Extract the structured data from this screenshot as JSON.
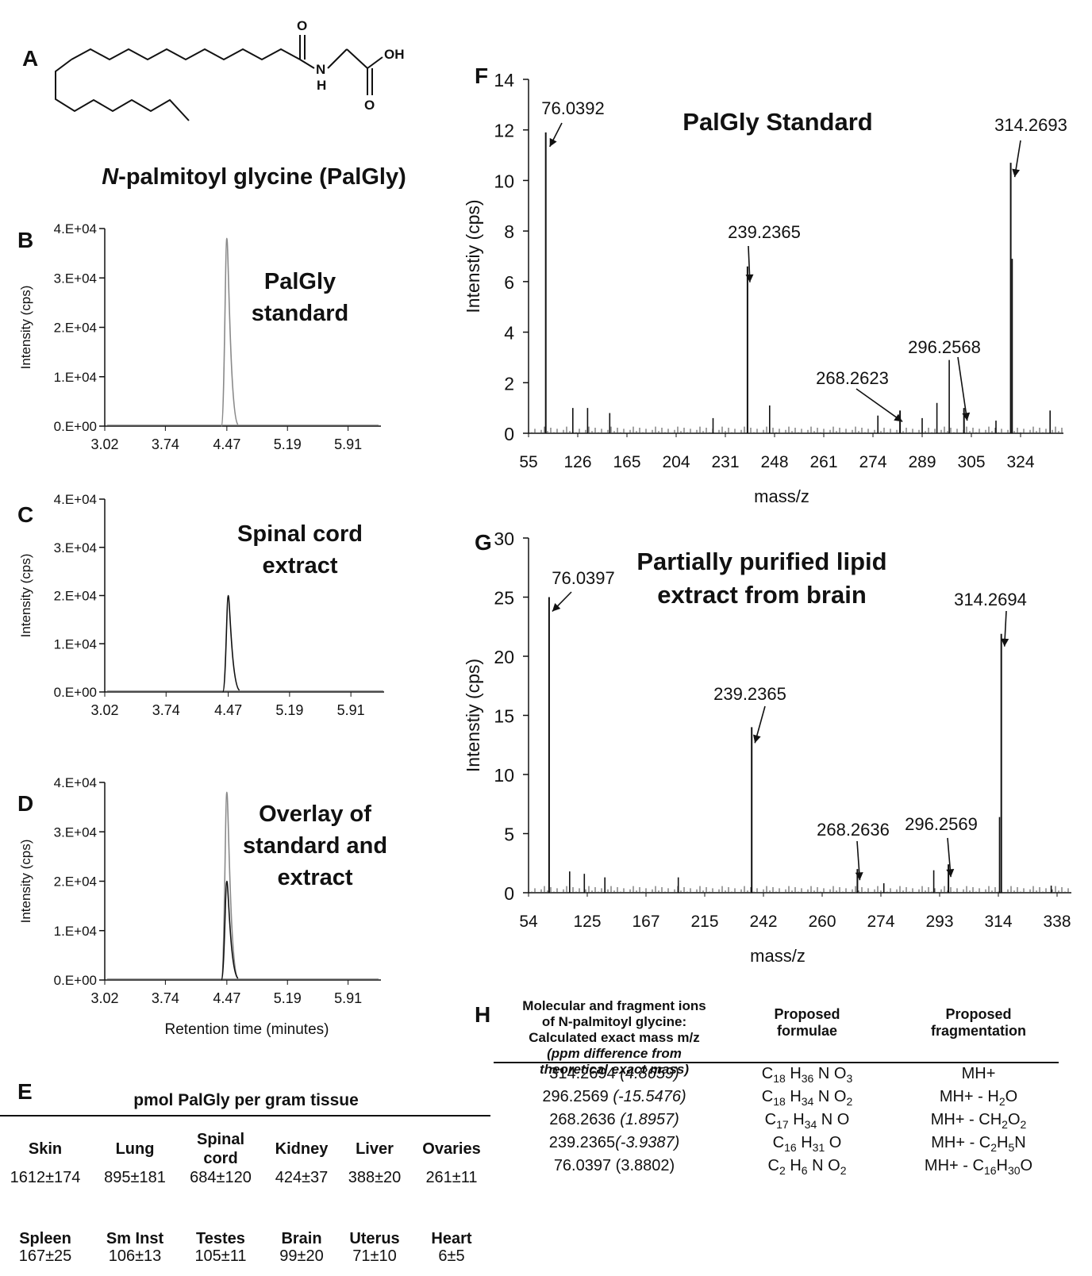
{
  "panel_letters": {
    "A": "A",
    "B": "B",
    "C": "C",
    "D": "D",
    "E": "E",
    "F": "F",
    "G": "G",
    "H": "H"
  },
  "structure": {
    "caption_n": "N",
    "caption_rest": "-palmitoyl glycine (PalGly)",
    "atoms": {
      "o_top": "O",
      "n": "N",
      "h": "H",
      "oh": "OH",
      "o_bottom": "O"
    }
  },
  "chart_data": [
    {
      "panel": "B",
      "type": "line",
      "title_lines": [
        "PalGly",
        "standard"
      ],
      "ylabel": "Intensity (cps)",
      "xlabel": "",
      "x_ticks": [
        "3.02",
        "3.74",
        "4.47",
        "5.19",
        "5.91"
      ],
      "y_ticks": [
        "0.E+00",
        "1.E+04",
        "2.E+04",
        "3.E+04",
        "4.E+04"
      ],
      "xlim": [
        3.02,
        6.3
      ],
      "ylim": [
        0,
        40000
      ],
      "series": [
        {
          "peak_rt": 4.47,
          "peak_height": 38000,
          "color": "#8a8a8a"
        }
      ]
    },
    {
      "panel": "C",
      "type": "line",
      "title_lines": [
        "Spinal cord",
        "extract"
      ],
      "ylabel": "Intensity (cps)",
      "xlabel": "",
      "x_ticks": [
        "3.02",
        "3.74",
        "4.47",
        "5.19",
        "5.91"
      ],
      "y_ticks": [
        "0.E+00",
        "1.E+04",
        "2.E+04",
        "3.E+04",
        "4.E+04"
      ],
      "xlim": [
        3.02,
        6.3
      ],
      "ylim": [
        0,
        40000
      ],
      "series": [
        {
          "peak_rt": 4.47,
          "peak_height": 20000,
          "color": "#111111"
        }
      ]
    },
    {
      "panel": "D",
      "type": "line",
      "title_lines": [
        "Overlay of",
        "standard and",
        "extract"
      ],
      "ylabel": "Intensity (cps)",
      "xlabel": "Retention time (minutes)",
      "x_ticks": [
        "3.02",
        "3.74",
        "4.47",
        "5.19",
        "5.91"
      ],
      "y_ticks": [
        "0.E+00",
        "1.E+04",
        "2.E+04",
        "3.E+04",
        "4.E+04"
      ],
      "xlim": [
        3.02,
        6.3
      ],
      "ylim": [
        0,
        40000
      ],
      "series": [
        {
          "peak_rt": 4.47,
          "peak_height": 38000,
          "color": "#8a8a8a"
        },
        {
          "peak_rt": 4.47,
          "peak_height": 20000,
          "color": "#111111"
        }
      ]
    },
    {
      "panel": "F",
      "type": "bar",
      "title_lines": [
        "PalGly Standard"
      ],
      "ylabel": "Intenstiy (cps)",
      "xlabel": "mass/z",
      "x_ticks": [
        "55",
        "126",
        "165",
        "204",
        "231",
        "248",
        "261",
        "274",
        "289",
        "305",
        "324"
      ],
      "y_ticks": [
        "0",
        "2",
        "4",
        "6",
        "8",
        "10",
        "12",
        "14"
      ],
      "ylim": [
        0,
        14
      ],
      "peaks": [
        {
          "label": "76.0392",
          "tick_pos": 0.35,
          "value": 11.9
        },
        {
          "label": "239.2365",
          "tick_pos": 4.45,
          "value": 6.6
        },
        {
          "label": "268.2623",
          "tick_pos": 7.55,
          "value": 0.9
        },
        {
          "label": "296.2568",
          "tick_pos": 8.85,
          "value": 1.0
        },
        {
          "label": "314.2693",
          "tick_pos": 9.8,
          "value": 10.7
        }
      ],
      "minor_peaks": [
        {
          "tick_pos": 0.9,
          "value": 1.0
        },
        {
          "tick_pos": 1.2,
          "value": 1.0
        },
        {
          "tick_pos": 1.65,
          "value": 0.8
        },
        {
          "tick_pos": 3.75,
          "value": 0.6
        },
        {
          "tick_pos": 4.9,
          "value": 1.1
        },
        {
          "tick_pos": 7.1,
          "value": 0.7
        },
        {
          "tick_pos": 8.0,
          "value": 0.6
        },
        {
          "tick_pos": 8.3,
          "value": 1.2
        },
        {
          "tick_pos": 8.55,
          "value": 2.9
        },
        {
          "tick_pos": 9.5,
          "value": 0.5
        },
        {
          "tick_pos": 9.83,
          "value": 6.9
        },
        {
          "tick_pos": 10.6,
          "value": 0.9
        }
      ]
    },
    {
      "panel": "G",
      "type": "bar",
      "title_lines": [
        "Partially purified lipid",
        "extract from brain"
      ],
      "ylabel": "Intenstiy (cps)",
      "xlabel": "mass/z",
      "x_ticks": [
        "54",
        "125",
        "167",
        "215",
        "242",
        "260",
        "274",
        "293",
        "314",
        "338"
      ],
      "y_ticks": [
        "0",
        "5",
        "10",
        "15",
        "20",
        "25",
        "30"
      ],
      "ylim": [
        0,
        30
      ],
      "peaks": [
        {
          "label": "76.0397",
          "tick_pos": 0.35,
          "value": 25.0
        },
        {
          "label": "239.2365",
          "tick_pos": 3.8,
          "value": 14.0
        },
        {
          "label": "268.2636",
          "tick_pos": 5.6,
          "value": 2.0
        },
        {
          "label": "296.2569",
          "tick_pos": 7.15,
          "value": 2.4
        },
        {
          "label": "314.2694",
          "tick_pos": 8.05,
          "value": 21.9
        }
      ],
      "minor_peaks": [
        {
          "tick_pos": 0.7,
          "value": 1.8
        },
        {
          "tick_pos": 0.95,
          "value": 1.6
        },
        {
          "tick_pos": 1.3,
          "value": 1.3
        },
        {
          "tick_pos": 2.55,
          "value": 1.3
        },
        {
          "tick_pos": 6.05,
          "value": 0.8
        },
        {
          "tick_pos": 6.9,
          "value": 1.9
        },
        {
          "tick_pos": 8.02,
          "value": 6.4
        },
        {
          "tick_pos": 8.9,
          "value": 0.6
        }
      ]
    }
  ],
  "table_e": {
    "title": "pmol PalGly per gram tissue",
    "rows": [
      {
        "headers": [
          [
            "Skin"
          ],
          [
            "Lung"
          ],
          [
            "Spinal",
            "cord"
          ],
          [
            "Kidney"
          ],
          [
            "Liver"
          ],
          [
            "Ovaries"
          ]
        ],
        "values": [
          "1612±174",
          "895±181",
          "684±120",
          "424±37",
          "388±20",
          "261±11"
        ]
      },
      {
        "headers": [
          [
            "Spleen"
          ],
          [
            "Sm Inst"
          ],
          [
            "Testes"
          ],
          [
            "Brain"
          ],
          [
            "Uterus"
          ],
          [
            "Heart"
          ]
        ],
        "values": [
          "167±25",
          "106±13",
          "105±11",
          "99±20",
          "71±10",
          "6±5"
        ]
      }
    ]
  },
  "table_h": {
    "col1_header": [
      "Molecular and fragment ions",
      "of N-palmitoyl glycine:",
      "Calculated exact mass m/z",
      "(ppm difference from",
      "theoretical exact mass)"
    ],
    "col2_header": [
      "Proposed",
      "formulae"
    ],
    "col3_header": [
      "Proposed",
      "fragmentation"
    ],
    "rows": [
      {
        "mass": "314.2694 ",
        "ppm": "(4.8659)",
        "ppm_italic": true,
        "formula": [
          [
            "C",
            "18"
          ],
          [
            " H",
            "36"
          ],
          [
            " N O",
            "3"
          ]
        ],
        "frag": [
          [
            "MH+",
            ""
          ]
        ]
      },
      {
        "mass": "296.2569 ",
        "ppm": "(-15.5476)",
        "ppm_italic": true,
        "formula": [
          [
            "C",
            "18"
          ],
          [
            " H",
            "34"
          ],
          [
            " N O",
            "2"
          ]
        ],
        "frag": [
          [
            "MH+ - H",
            "2"
          ],
          [
            "O",
            ""
          ]
        ]
      },
      {
        "mass": "268.2636 ",
        "ppm": "(1.8957)",
        "ppm_italic": true,
        "formula": [
          [
            "C",
            "17"
          ],
          [
            " H",
            "34"
          ],
          [
            " N O",
            ""
          ]
        ],
        "frag": [
          [
            "MH+ - CH",
            "2"
          ],
          [
            "O",
            "2"
          ]
        ]
      },
      {
        "mass": "239.2365",
        "ppm": "(-3.9387)",
        "ppm_italic": true,
        "formula": [
          [
            "C",
            "16"
          ],
          [
            " H",
            "31"
          ],
          [
            " O",
            ""
          ]
        ],
        "frag": [
          [
            "MH+ - C",
            "2"
          ],
          [
            "H",
            "5"
          ],
          [
            "N",
            ""
          ]
        ]
      },
      {
        "mass": "76.0397 ",
        "ppm": "(3.8802)",
        "ppm_italic": false,
        "formula": [
          [
            "C",
            "2"
          ],
          [
            " H",
            "6"
          ],
          [
            " N O",
            "2"
          ]
        ],
        "frag": [
          [
            "MH+ - C",
            "16"
          ],
          [
            "H",
            "30"
          ],
          [
            "O",
            ""
          ]
        ]
      }
    ]
  }
}
